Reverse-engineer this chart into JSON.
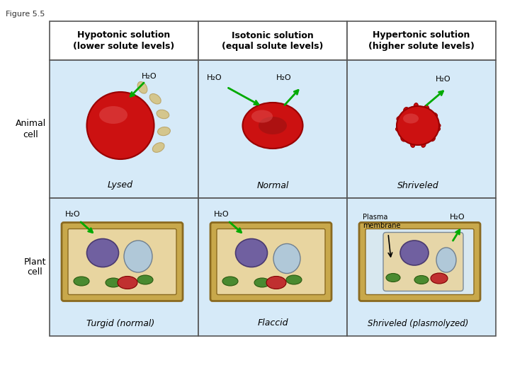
{
  "figure_label": "Figure 5.5",
  "background_color": "#ffffff",
  "panel_bg_top": "#d6eaf8",
  "panel_bg_bottom": "#d6eaf8",
  "header_bg": "#ffffff",
  "border_color": "#555555",
  "columns": [
    {
      "header": "Hypotonic solution\n(lower solute levels)",
      "animal_label": "Lysed",
      "plant_label": "Turgid (normal)",
      "h2o_animal": "H₂O",
      "h2o_plant": "H₂O"
    },
    {
      "header": "Isotonic solution\n(equal solute levels)",
      "animal_label": "Normal",
      "plant_label": "Flaccid",
      "h2o_animal_left": "H₂O",
      "h2o_animal_right": "H₂O",
      "h2o_plant": "H₂O"
    },
    {
      "header": "Hypertonic solution\n(higher solute levels)",
      "animal_label": "Shriveled",
      "plant_label": "Shriveled (plasmolyzed)",
      "h2o_animal": "H₂O",
      "h2o_plant": "H₂O",
      "plasma_membrane": "Plasma\nmembrane"
    }
  ],
  "row_labels": [
    "Animal\ncell",
    "Plant\ncell"
  ],
  "title_fontsize": 9,
  "label_fontsize": 9,
  "h2o_fontsize": 8,
  "row_label_fontsize": 9,
  "figsize": [
    7.2,
    5.4
  ],
  "dpi": 100
}
